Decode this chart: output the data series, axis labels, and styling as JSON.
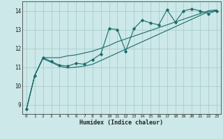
{
  "title": "",
  "xlabel": "Humidex (Indice chaleur)",
  "bg_color": "#cce8e8",
  "grid_color": "#aacccc",
  "line_color": "#1a6b6b",
  "xlim": [
    -0.5,
    23.5
  ],
  "ylim": [
    8.5,
    14.5
  ],
  "xticks": [
    0,
    1,
    2,
    3,
    4,
    5,
    6,
    7,
    8,
    9,
    10,
    11,
    12,
    13,
    14,
    15,
    16,
    17,
    18,
    19,
    20,
    21,
    22,
    23
  ],
  "yticks": [
    9,
    10,
    11,
    12,
    13,
    14
  ],
  "line1_x": [
    0,
    1,
    2,
    3,
    4,
    5,
    6,
    7,
    8,
    9,
    10,
    11,
    12,
    13,
    14,
    15,
    16,
    17,
    18,
    19,
    20,
    21,
    22,
    23
  ],
  "line1_y": [
    8.75,
    10.55,
    11.5,
    11.3,
    11.1,
    11.05,
    11.2,
    11.15,
    11.4,
    11.7,
    13.05,
    13.0,
    11.85,
    13.05,
    13.5,
    13.35,
    13.25,
    14.05,
    13.4,
    14.0,
    14.1,
    14.0,
    13.85,
    14.0
  ],
  "line2_x": [
    0,
    1,
    2,
    3,
    4,
    5,
    6,
    7,
    8,
    9,
    10,
    11,
    12,
    13,
    14,
    15,
    16,
    17,
    18,
    19,
    20,
    21,
    22,
    23
  ],
  "line2_y": [
    8.75,
    10.55,
    11.5,
    11.5,
    11.5,
    11.6,
    11.65,
    11.75,
    11.85,
    12.0,
    12.15,
    12.35,
    12.5,
    12.65,
    12.8,
    12.95,
    13.1,
    13.25,
    13.4,
    13.55,
    13.7,
    13.85,
    14.0,
    14.05
  ],
  "line3_x": [
    0,
    1,
    2,
    3,
    4,
    5,
    6,
    7,
    8,
    9,
    10,
    11,
    12,
    13,
    14,
    15,
    16,
    17,
    18,
    19,
    20,
    21,
    22,
    23
  ],
  "line3_y": [
    8.75,
    10.55,
    11.45,
    11.25,
    11.05,
    10.95,
    11.0,
    11.05,
    11.15,
    11.35,
    11.55,
    11.75,
    11.95,
    12.15,
    12.35,
    12.55,
    12.75,
    12.95,
    13.15,
    13.35,
    13.55,
    13.75,
    13.95,
    14.0
  ]
}
